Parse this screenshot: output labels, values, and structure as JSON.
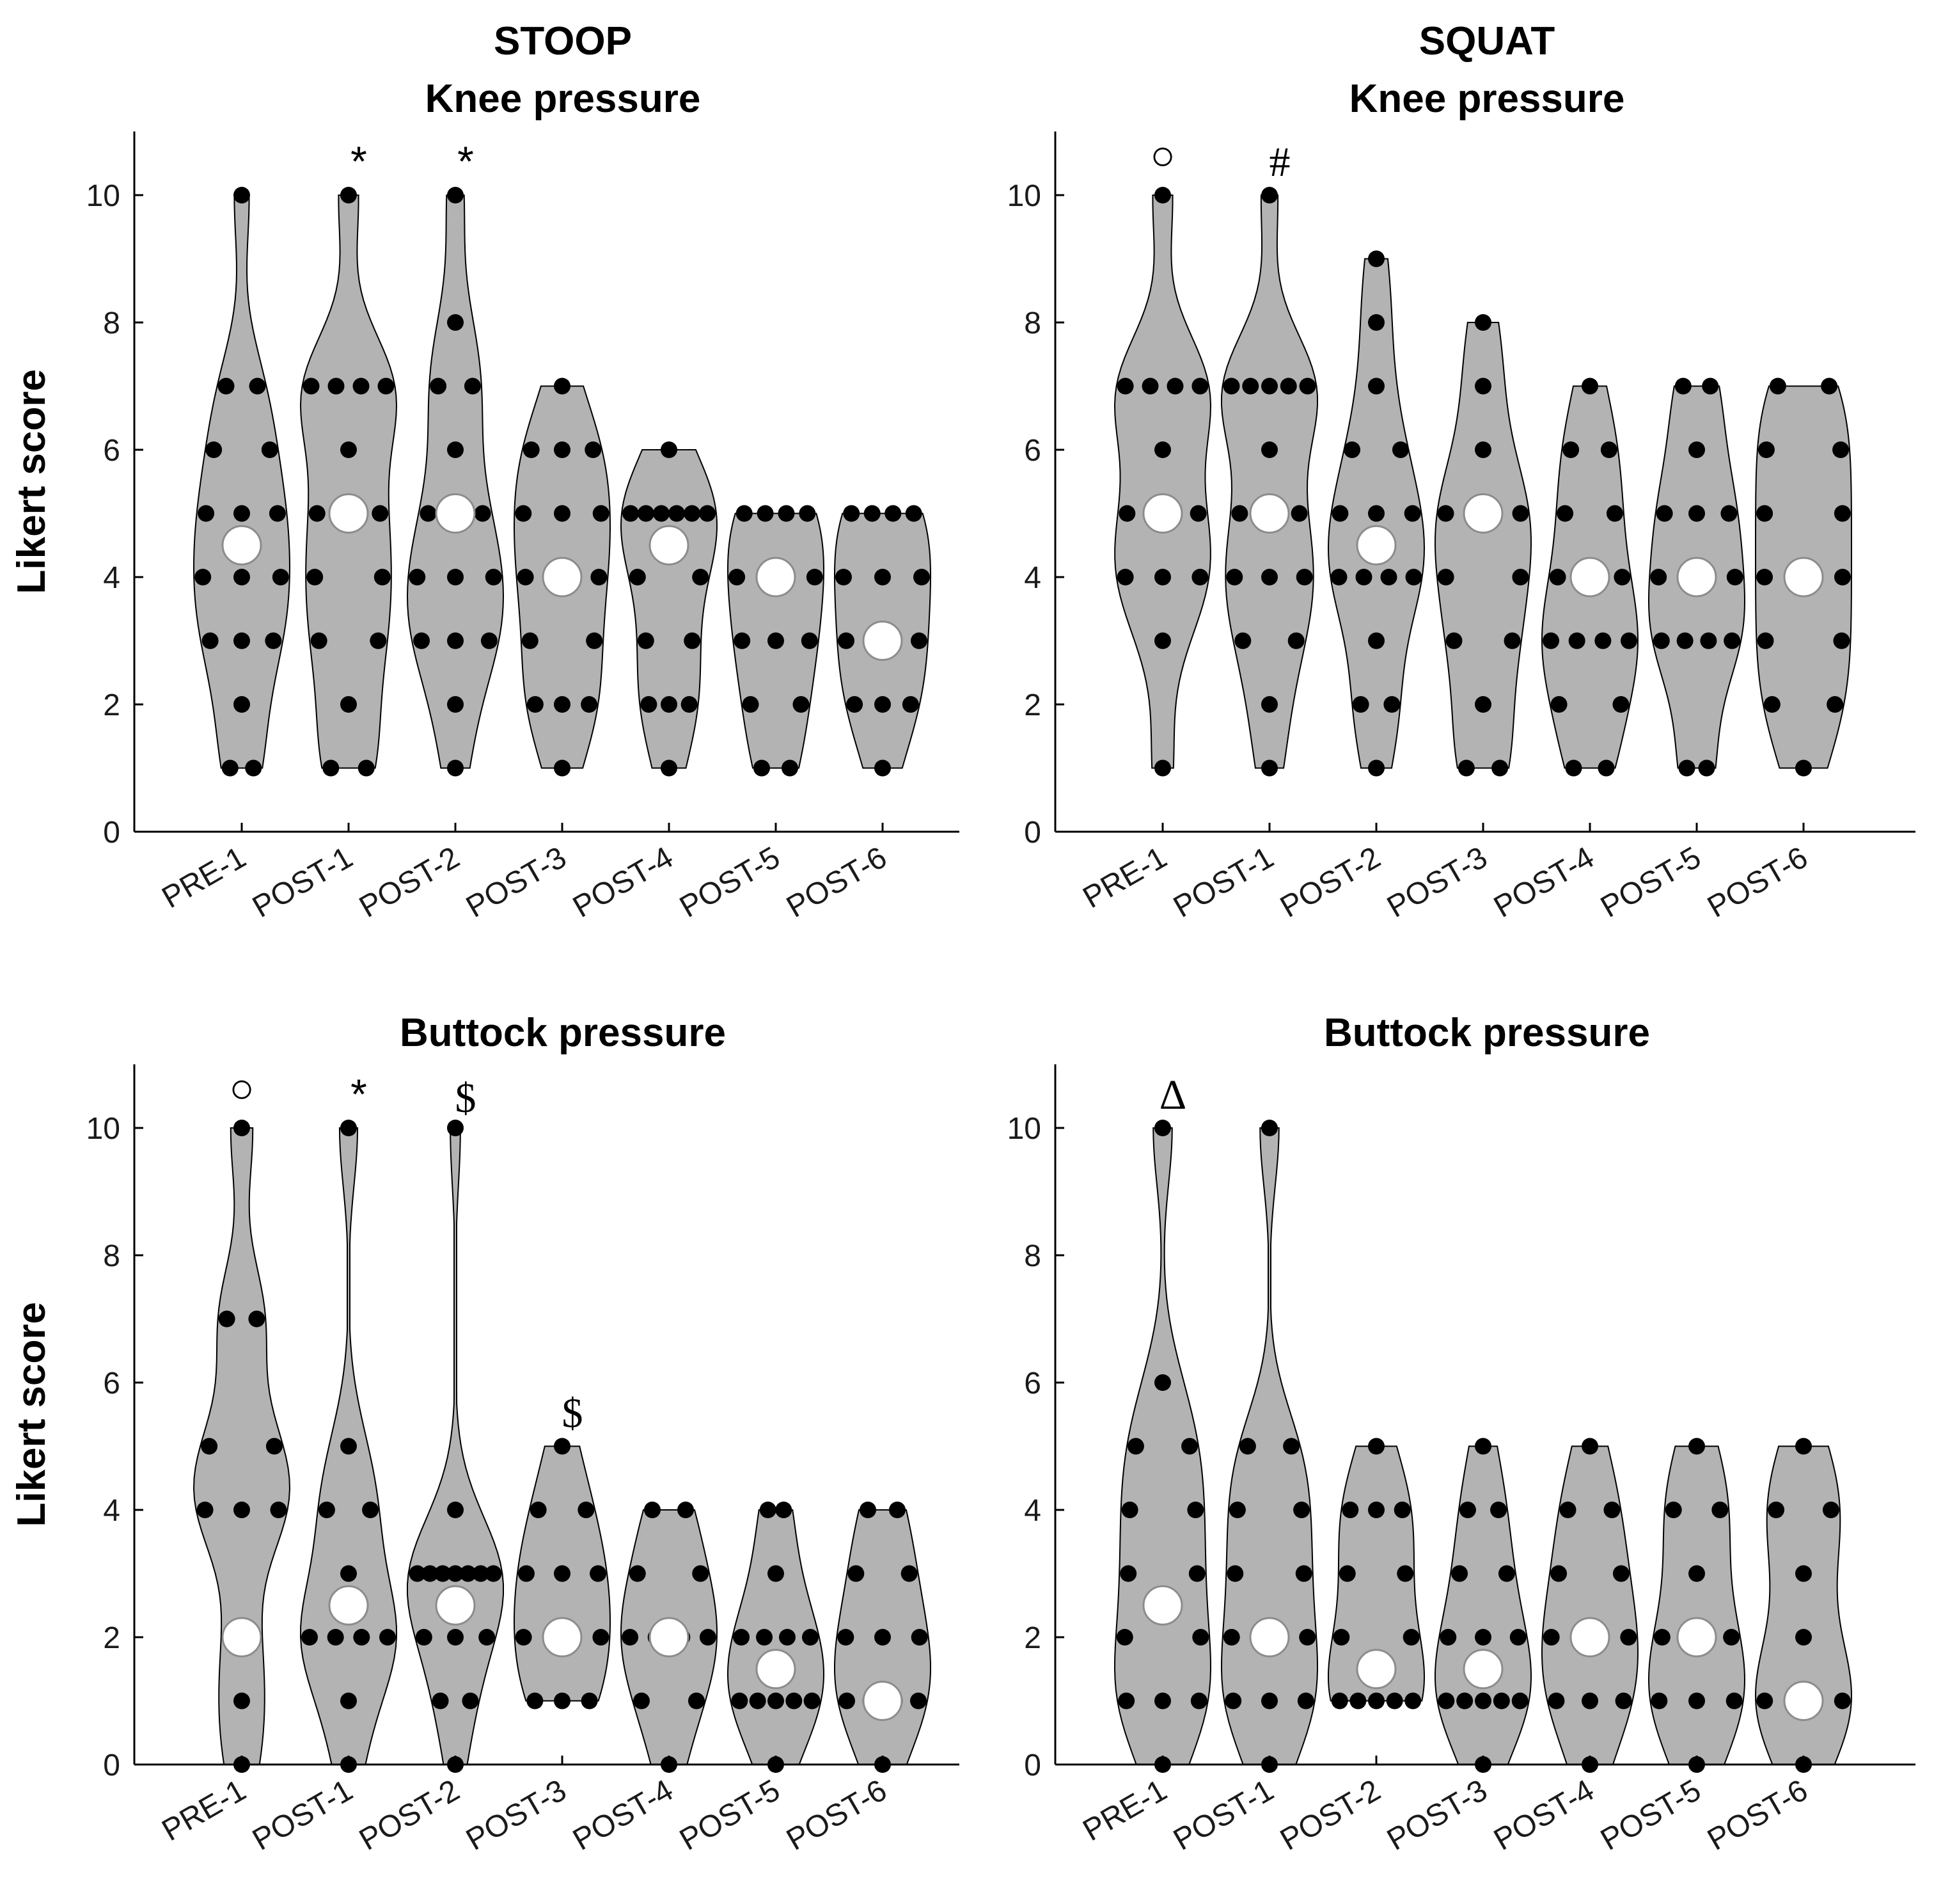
{
  "chart_data": [
    {
      "type": "violin",
      "column_title": "STOOP",
      "title": "Knee pressure",
      "ylabel": "Likert score",
      "ylim": [
        0,
        11
      ],
      "yticks": [
        0,
        2,
        4,
        6,
        8,
        10
      ],
      "categories": [
        "PRE-1",
        "POST-1",
        "POST-2",
        "POST-3",
        "POST-4",
        "POST-5",
        "POST-6"
      ],
      "medians": [
        4.5,
        5,
        5,
        4,
        4.5,
        4,
        3
      ],
      "points": [
        [
          10,
          7,
          7,
          6,
          6,
          5,
          5,
          5,
          4,
          4,
          4,
          3,
          3,
          3,
          2,
          1,
          1
        ],
        [
          10,
          7,
          7,
          7,
          7,
          6,
          5,
          5,
          4,
          4,
          3,
          3,
          2,
          1,
          1
        ],
        [
          10,
          8,
          7,
          7,
          6,
          5,
          5,
          4,
          4,
          4,
          3,
          3,
          3,
          2,
          1
        ],
        [
          7,
          6,
          6,
          6,
          5,
          5,
          5,
          4,
          4,
          4,
          3,
          3,
          2,
          2,
          2,
          1
        ],
        [
          6,
          5,
          5,
          5,
          5,
          5,
          5,
          4,
          4,
          3,
          3,
          2,
          2,
          2,
          1
        ],
        [
          5,
          5,
          5,
          5,
          4,
          4,
          4,
          3,
          3,
          3,
          2,
          2,
          1,
          1
        ],
        [
          5,
          5,
          5,
          5,
          4,
          4,
          4,
          3,
          3,
          3,
          2,
          2,
          2,
          1
        ]
      ],
      "annotations": [
        {
          "category": "POST-1",
          "symbol": "*"
        },
        {
          "category": "POST-2",
          "symbol": "*"
        }
      ]
    },
    {
      "type": "violin",
      "column_title": "SQUAT",
      "title": "Knee pressure",
      "ylabel": "",
      "ylim": [
        0,
        11
      ],
      "yticks": [
        0,
        2,
        4,
        6,
        8,
        10
      ],
      "categories": [
        "PRE-1",
        "POST-1",
        "POST-2",
        "POST-3",
        "POST-4",
        "POST-5",
        "POST-6"
      ],
      "medians": [
        5,
        5,
        4.5,
        5,
        4,
        4,
        4
      ],
      "points": [
        [
          10,
          7,
          7,
          7,
          7,
          6,
          5,
          5,
          4,
          4,
          4,
          3,
          1
        ],
        [
          10,
          7,
          7,
          7,
          7,
          7,
          6,
          5,
          5,
          4,
          4,
          4,
          3,
          3,
          2,
          1
        ],
        [
          9,
          8,
          7,
          6,
          6,
          5,
          5,
          5,
          4,
          4,
          4,
          4,
          3,
          2,
          2,
          1
        ],
        [
          8,
          7,
          6,
          5,
          5,
          5,
          4,
          4,
          3,
          3,
          2,
          1,
          1
        ],
        [
          7,
          6,
          6,
          5,
          5,
          4,
          4,
          3,
          3,
          3,
          3,
          2,
          2,
          1,
          1
        ],
        [
          7,
          7,
          6,
          5,
          5,
          5,
          4,
          4,
          3,
          3,
          3,
          3,
          1,
          1
        ],
        [
          7,
          7,
          6,
          6,
          5,
          5,
          4,
          4,
          3,
          3,
          2,
          2,
          1
        ]
      ],
      "annotations": [
        {
          "category": "PRE-1",
          "symbol": "○"
        },
        {
          "category": "POST-1",
          "symbol": "#"
        }
      ]
    },
    {
      "type": "violin",
      "column_title": "",
      "title": "Buttock pressure",
      "ylabel": "Likert score",
      "ylim": [
        0,
        11
      ],
      "yticks": [
        0,
        2,
        4,
        6,
        8,
        10
      ],
      "categories": [
        "PRE-1",
        "POST-1",
        "POST-2",
        "POST-3",
        "POST-4",
        "POST-5",
        "POST-6"
      ],
      "medians": [
        2,
        2.5,
        2.5,
        2,
        2,
        1.5,
        1
      ],
      "points": [
        [
          10,
          7,
          7,
          5,
          5,
          4,
          4,
          4,
          2,
          1,
          0
        ],
        [
          10,
          5,
          4,
          4,
          3,
          2,
          2,
          2,
          2,
          1,
          0
        ],
        [
          10,
          4,
          3,
          3,
          3,
          3,
          3,
          3,
          3,
          2,
          2,
          2,
          1,
          1,
          0
        ],
        [
          5,
          4,
          4,
          3,
          3,
          3,
          2,
          2,
          2,
          1,
          1,
          1
        ],
        [
          4,
          4,
          3,
          3,
          2,
          2,
          2,
          2,
          1,
          1,
          0
        ],
        [
          4,
          4,
          3,
          2,
          2,
          2,
          2,
          1,
          1,
          1,
          1,
          1,
          0
        ],
        [
          4,
          4,
          3,
          3,
          2,
          2,
          2,
          1,
          1,
          1,
          1,
          0
        ]
      ],
      "annotations": [
        {
          "category": "PRE-1",
          "symbol": "○"
        },
        {
          "category": "POST-1",
          "symbol": "*"
        },
        {
          "category": "POST-2",
          "symbol": "$"
        },
        {
          "category": "POST-3",
          "symbol": "$"
        }
      ]
    },
    {
      "type": "violin",
      "column_title": "",
      "title": "Buttock pressure",
      "ylabel": "",
      "ylim": [
        0,
        11
      ],
      "yticks": [
        0,
        2,
        4,
        6,
        8,
        10
      ],
      "categories": [
        "PRE-1",
        "POST-1",
        "POST-2",
        "POST-3",
        "POST-4",
        "POST-5",
        "POST-6"
      ],
      "medians": [
        2.5,
        2,
        1.5,
        1.5,
        2,
        2,
        1
      ],
      "points": [
        [
          10,
          6,
          5,
          5,
          4,
          4,
          3,
          3,
          2,
          2,
          1,
          1,
          1,
          0
        ],
        [
          10,
          5,
          5,
          4,
          4,
          3,
          3,
          2,
          2,
          1,
          1,
          1,
          0
        ],
        [
          5,
          4,
          4,
          4,
          3,
          3,
          2,
          2,
          1,
          1,
          1,
          1,
          1
        ],
        [
          5,
          4,
          4,
          3,
          3,
          2,
          2,
          2,
          1,
          1,
          1,
          1,
          1,
          0
        ],
        [
          5,
          4,
          4,
          3,
          3,
          2,
          2,
          2,
          1,
          1,
          1,
          0
        ],
        [
          5,
          4,
          4,
          3,
          2,
          2,
          1,
          1,
          1,
          0
        ],
        [
          5,
          4,
          4,
          3,
          2,
          1,
          1,
          1,
          0
        ]
      ],
      "annotations": [
        {
          "category": "PRE-1",
          "symbol": "Δ"
        }
      ]
    }
  ]
}
